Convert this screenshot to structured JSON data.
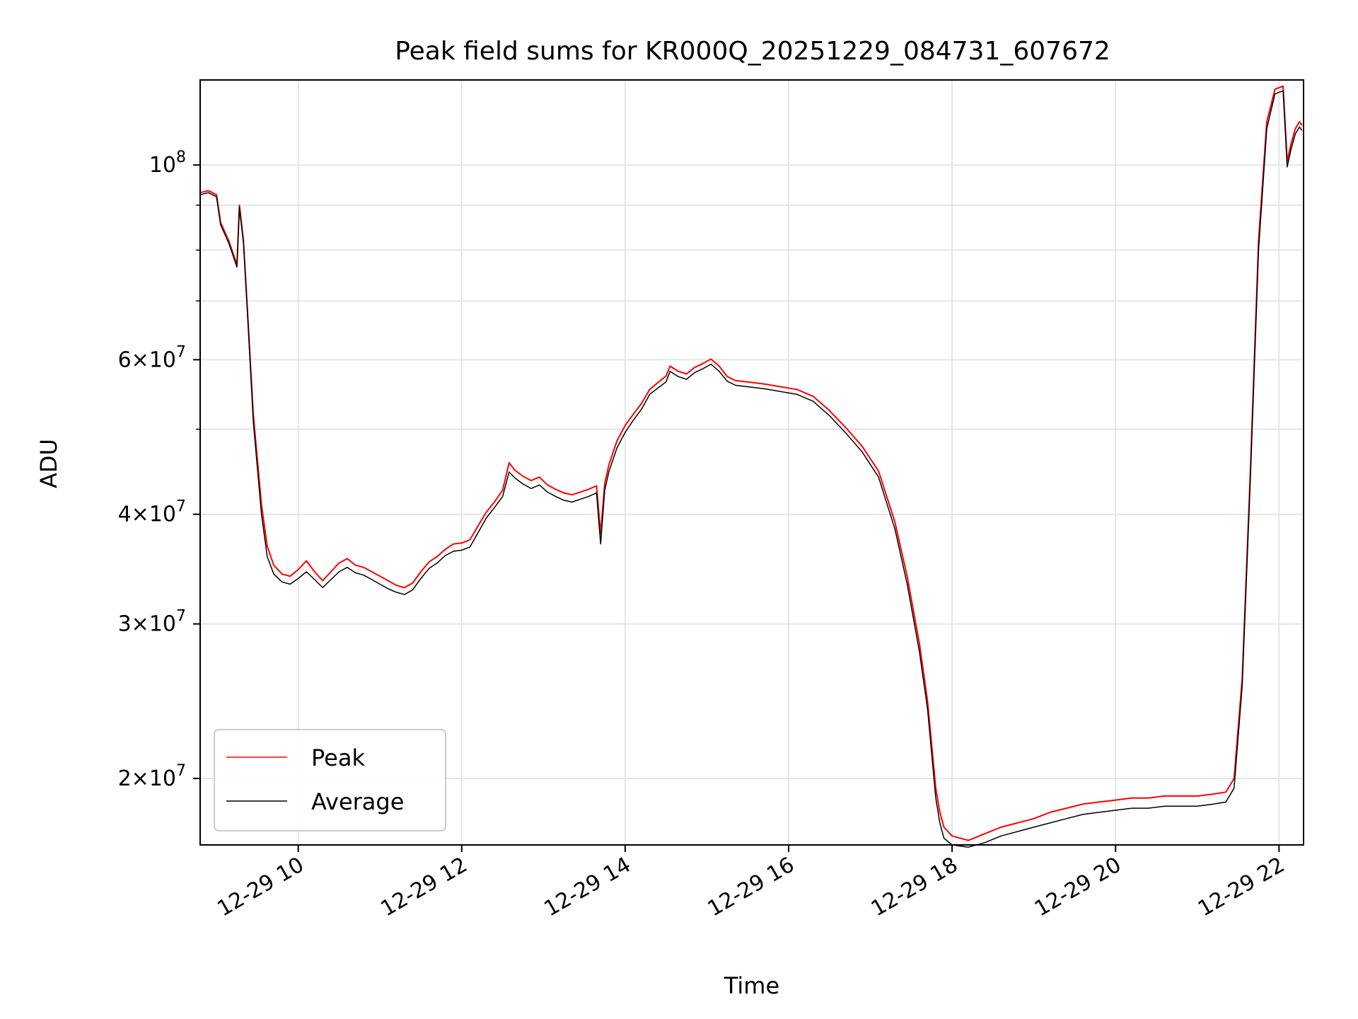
{
  "chart_data": {
    "type": "line",
    "title": "Peak field sums for KR000Q_20251229_084731_607672",
    "xlabel": "Time",
    "ylabel": "ADU",
    "x_unit": "hours since 12-29 00:00",
    "xlim": [
      8.8,
      22.3
    ],
    "ylim": [
      16800000,
      125000000
    ],
    "yscale": "log",
    "grid": true,
    "legend_position": "lower left",
    "x_ticks": [
      {
        "value": 10,
        "label": "12-29 10"
      },
      {
        "value": 12,
        "label": "12-29 12"
      },
      {
        "value": 14,
        "label": "12-29 14"
      },
      {
        "value": 16,
        "label": "12-29 16"
      },
      {
        "value": 18,
        "label": "12-29 18"
      },
      {
        "value": 20,
        "label": "12-29 20"
      },
      {
        "value": 22,
        "label": "12-29 22"
      }
    ],
    "y_ticks_major": [
      {
        "value": 100000000,
        "mantissa": "",
        "exponent": "8"
      },
      {
        "value": 60000000,
        "mantissa": "6",
        "exponent": "7"
      },
      {
        "value": 40000000,
        "mantissa": "4",
        "exponent": "7"
      },
      {
        "value": 30000000,
        "mantissa": "3",
        "exponent": "7"
      },
      {
        "value": 20000000,
        "mantissa": "2",
        "exponent": "7"
      }
    ],
    "y_ticks_minor": [
      90000000,
      80000000,
      70000000,
      50000000
    ],
    "series": [
      {
        "name": "Peak",
        "color": "#ff0000",
        "x": [
          8.8,
          8.9,
          9.0,
          9.05,
          9.15,
          9.25,
          9.28,
          9.33,
          9.38,
          9.45,
          9.55,
          9.62,
          9.7,
          9.8,
          9.9,
          10.0,
          10.1,
          10.2,
          10.3,
          10.4,
          10.5,
          10.6,
          10.7,
          10.8,
          10.9,
          11.0,
          11.1,
          11.2,
          11.3,
          11.4,
          11.5,
          11.6,
          11.7,
          11.8,
          11.9,
          12.0,
          12.1,
          12.2,
          12.3,
          12.4,
          12.5,
          12.58,
          12.65,
          12.75,
          12.85,
          12.95,
          13.05,
          13.15,
          13.25,
          13.35,
          13.45,
          13.55,
          13.65,
          13.7,
          13.75,
          13.8,
          13.9,
          14.0,
          14.1,
          14.2,
          14.3,
          14.4,
          14.5,
          14.55,
          14.6,
          14.65,
          14.75,
          14.85,
          14.95,
          15.05,
          15.15,
          15.25,
          15.35,
          15.5,
          15.7,
          15.9,
          16.1,
          16.3,
          16.5,
          16.7,
          16.9,
          17.1,
          17.3,
          17.45,
          17.6,
          17.7,
          17.8,
          17.85,
          17.9,
          18.0,
          18.2,
          18.4,
          18.6,
          18.8,
          19.0,
          19.2,
          19.4,
          19.6,
          19.8,
          20.0,
          20.2,
          20.4,
          20.6,
          20.8,
          21.0,
          21.2,
          21.35,
          21.45,
          21.55,
          21.65,
          21.75,
          21.85,
          21.95,
          22.05,
          22.1,
          22.15,
          22.2,
          22.25,
          22.28
        ],
        "values": [
          93000000,
          93500000,
          92500000,
          86000000,
          82000000,
          77000000,
          90000000,
          82000000,
          68000000,
          52000000,
          41000000,
          36800000,
          35000000,
          34200000,
          34000000,
          34600000,
          35400000,
          34400000,
          33600000,
          34400000,
          35200000,
          35600000,
          35000000,
          34800000,
          34400000,
          34000000,
          33600000,
          33200000,
          33000000,
          33400000,
          34400000,
          35300000,
          35800000,
          36500000,
          37000000,
          37100000,
          37400000,
          38800000,
          40200000,
          41300000,
          42600000,
          45800000,
          44900000,
          44200000,
          43700000,
          44100000,
          43200000,
          42700000,
          42300000,
          42100000,
          42400000,
          42700000,
          43100000,
          38000000,
          43400000,
          45500000,
          48500000,
          50500000,
          52000000,
          53500000,
          55500000,
          56500000,
          57500000,
          59000000,
          58600000,
          58200000,
          57800000,
          58800000,
          59400000,
          60100000,
          59000000,
          57400000,
          56800000,
          56600000,
          56300000,
          55900000,
          55500000,
          54500000,
          52500000,
          50200000,
          47800000,
          44800000,
          39200000,
          34000000,
          28500000,
          24500000,
          19500000,
          18300000,
          17600000,
          17200000,
          17000000,
          17300000,
          17600000,
          17800000,
          18000000,
          18300000,
          18500000,
          18700000,
          18800000,
          18900000,
          19000000,
          19000000,
          19100000,
          19100000,
          19100000,
          19200000,
          19300000,
          20000000,
          26000000,
          45000000,
          82000000,
          112000000,
          122000000,
          123000000,
          101000000,
          106000000,
          110000000,
          112000000,
          111000000
        ]
      },
      {
        "name": "Average",
        "color": "#000000",
        "x": [
          8.8,
          8.9,
          9.0,
          9.05,
          9.15,
          9.25,
          9.28,
          9.33,
          9.38,
          9.45,
          9.55,
          9.62,
          9.7,
          9.8,
          9.9,
          10.0,
          10.1,
          10.2,
          10.3,
          10.4,
          10.5,
          10.6,
          10.7,
          10.8,
          10.9,
          11.0,
          11.1,
          11.2,
          11.3,
          11.4,
          11.5,
          11.6,
          11.7,
          11.8,
          11.9,
          12.0,
          12.1,
          12.2,
          12.3,
          12.4,
          12.5,
          12.58,
          12.65,
          12.75,
          12.85,
          12.95,
          13.05,
          13.15,
          13.25,
          13.35,
          13.45,
          13.55,
          13.65,
          13.7,
          13.75,
          13.8,
          13.9,
          14.0,
          14.1,
          14.2,
          14.3,
          14.4,
          14.5,
          14.55,
          14.6,
          14.65,
          14.75,
          14.85,
          14.95,
          15.05,
          15.15,
          15.25,
          15.35,
          15.5,
          15.7,
          15.9,
          16.1,
          16.3,
          16.5,
          16.7,
          16.9,
          17.1,
          17.3,
          17.45,
          17.6,
          17.7,
          17.8,
          17.85,
          17.9,
          18.0,
          18.2,
          18.4,
          18.6,
          18.8,
          19.0,
          19.2,
          19.4,
          19.6,
          19.8,
          20.0,
          20.2,
          20.4,
          20.6,
          20.8,
          21.0,
          21.2,
          21.35,
          21.45,
          21.55,
          21.65,
          21.75,
          21.85,
          21.95,
          22.05,
          22.1,
          22.15,
          22.2,
          22.25,
          22.28
        ],
        "values": [
          92500000,
          93000000,
          92000000,
          85500000,
          81500000,
          76500000,
          89500000,
          81500000,
          67500000,
          51000000,
          40000000,
          35800000,
          34200000,
          33500000,
          33300000,
          33800000,
          34400000,
          33700000,
          33000000,
          33700000,
          34400000,
          34800000,
          34300000,
          34100000,
          33700000,
          33300000,
          32900000,
          32600000,
          32400000,
          32800000,
          33800000,
          34700000,
          35200000,
          35900000,
          36300000,
          36400000,
          36700000,
          38100000,
          39600000,
          40700000,
          41900000,
          44700000,
          44000000,
          43300000,
          42800000,
          43200000,
          42400000,
          41900000,
          41500000,
          41300000,
          41600000,
          41900000,
          42300000,
          37000000,
          42600000,
          44700000,
          47600000,
          49600000,
          51200000,
          52700000,
          54800000,
          55700000,
          56600000,
          58200000,
          57800000,
          57400000,
          57000000,
          58000000,
          58600000,
          59300000,
          58200000,
          56700000,
          56100000,
          55900000,
          55600000,
          55200000,
          54800000,
          53800000,
          51800000,
          49500000,
          47100000,
          44100000,
          38500000,
          33300000,
          27900000,
          24000000,
          19000000,
          17800000,
          17100000,
          16800000,
          16700000,
          16900000,
          17200000,
          17400000,
          17600000,
          17800000,
          18000000,
          18200000,
          18300000,
          18400000,
          18500000,
          18500000,
          18600000,
          18600000,
          18600000,
          18700000,
          18800000,
          19500000,
          25500000,
          44000000,
          80000000,
          110000000,
          120500000,
          121500000,
          99500000,
          104500000,
          108500000,
          110500000,
          109500000
        ]
      }
    ]
  }
}
